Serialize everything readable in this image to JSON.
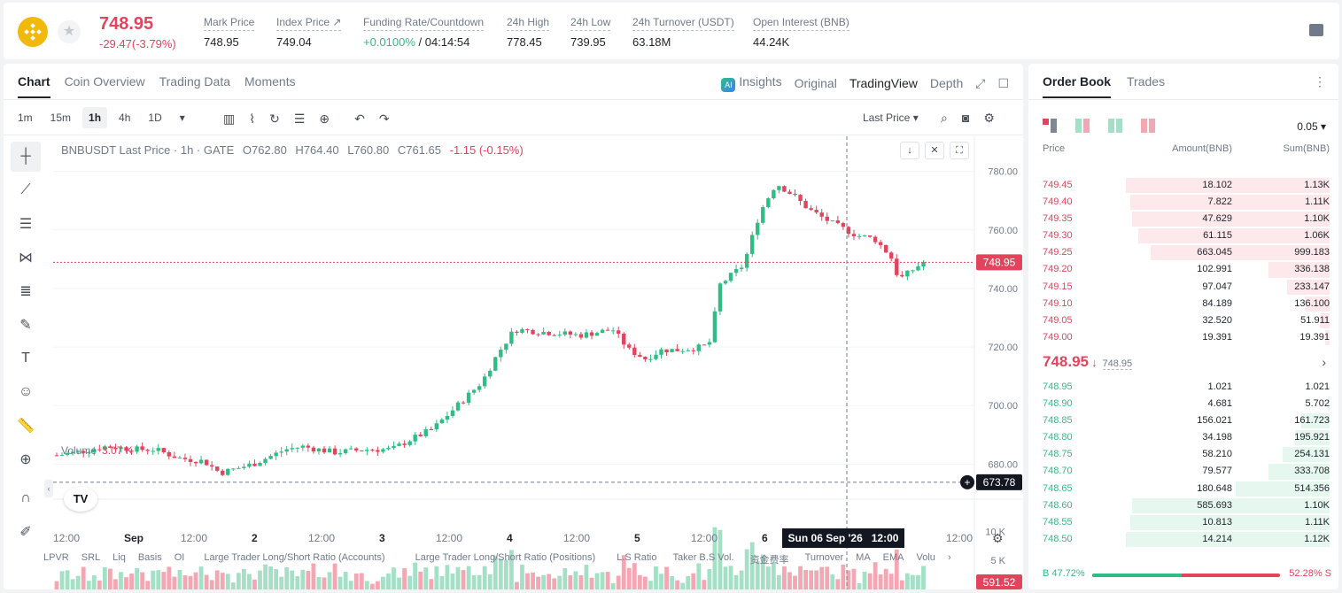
{
  "header": {
    "last_price": "748.95",
    "change": "-29.47(-3.79%)",
    "stats": [
      {
        "label": "Mark Price",
        "value": "748.95"
      },
      {
        "label": "Index Price ↗",
        "value": "749.04"
      },
      {
        "label": "Funding Rate/Countdown",
        "value_green": "+0.0100%",
        "value": " / 04:14:54"
      },
      {
        "label": "24h High",
        "value": "778.45"
      },
      {
        "label": "24h Low",
        "value": "739.95"
      },
      {
        "label": "24h Turnover (USDT)",
        "value": "63.18M"
      },
      {
        "label": "Open Interest (BNB)",
        "value": "44.24K"
      }
    ]
  },
  "chart_tabs": [
    "Chart",
    "Coin Overview",
    "Trading Data",
    "Moments"
  ],
  "view_tabs": {
    "insights": "Insights",
    "original": "Original",
    "tradingview": "TradingView",
    "depth": "Depth"
  },
  "intervals": [
    "1m",
    "15m",
    "1h",
    "4h",
    "1D"
  ],
  "price_type": "Last Price",
  "legend": {
    "symbol": "BNBUSDT Last Price · 1h · GATE",
    "o": "O762.80",
    "h": "H764.40",
    "l": "L760.80",
    "c": "C761.65",
    "chg": "-1.15 (-0.15%)"
  },
  "volume_legend": {
    "label": "Volume",
    "value": "3.07 K"
  },
  "crosshair": {
    "price": "673.78",
    "time": "Sun 06 Sep '26   12:00"
  },
  "indicators": [
    "LPVR",
    "SRL",
    "Liq",
    "Basis",
    "OI",
    "Large Trader Long/Short Ratio (Accounts)",
    "Large Trader Long/Short Ratio (Positions)",
    "L.S Ratio",
    "Taker B.S Vol.",
    "资金费率",
    "Turnover",
    "MA",
    "EMA",
    "Volu"
  ],
  "chart_data": {
    "type": "candlestick",
    "symbol": "BNBUSDT",
    "interval": "1h",
    "y_ticks": [
      780,
      760,
      740,
      720,
      700,
      680
    ],
    "y_tick_labels": [
      "780.00",
      "760.00",
      "740.00",
      "720.00",
      "700.00",
      "680.00"
    ],
    "ylim": [
      668,
      792
    ],
    "x_tick_labels": [
      "12:00",
      "Sep",
      "12:00",
      "2",
      "12:00",
      "3",
      "12:00",
      "4",
      "12:00",
      "5",
      "12:00",
      "6",
      "12:00",
      "7",
      "12:00"
    ],
    "last_price_label": "748.95",
    "last_price": 748.95,
    "volume_ticks": [
      "10 K",
      "5 K"
    ],
    "volume_ylim": [
      0,
      14000
    ],
    "current_volume_label": "591.52",
    "colors": {
      "up": "#2ebd85",
      "down": "#e2445c",
      "up_vol": "#a3e0c6",
      "down_vol": "#f3a7b2"
    }
  },
  "orderbook": {
    "tabs": [
      "Order Book",
      "Trades"
    ],
    "step": "0.05 ▾",
    "headers": {
      "price": "Price",
      "amount": "Amount(BNB)",
      "sum": "Sum(BNB)"
    },
    "asks": [
      {
        "price": "749.45",
        "amount": "18.102",
        "sum": "1.13K",
        "depth": 1.0
      },
      {
        "price": "749.40",
        "amount": "7.822",
        "sum": "1.11K",
        "depth": 0.98
      },
      {
        "price": "749.35",
        "amount": "47.629",
        "sum": "1.10K",
        "depth": 0.97
      },
      {
        "price": "749.30",
        "amount": "61.115",
        "sum": "1.06K",
        "depth": 0.94
      },
      {
        "price": "749.25",
        "amount": "663.045",
        "sum": "999.183",
        "depth": 0.88
      },
      {
        "price": "749.20",
        "amount": "102.991",
        "sum": "336.138",
        "depth": 0.3
      },
      {
        "price": "749.15",
        "amount": "97.047",
        "sum": "233.147",
        "depth": 0.21
      },
      {
        "price": "749.10",
        "amount": "84.189",
        "sum": "136.100",
        "depth": 0.12
      },
      {
        "price": "749.05",
        "amount": "32.520",
        "sum": "51.911",
        "depth": 0.05
      },
      {
        "price": "749.00",
        "amount": "19.391",
        "sum": "19.391",
        "depth": 0.02
      }
    ],
    "mid_price": "748.95",
    "mid_arrow": "🡓",
    "mark_price": "748.95",
    "bids": [
      {
        "price": "748.95",
        "amount": "1.021",
        "sum": "1.021",
        "depth": 0.0
      },
      {
        "price": "748.90",
        "amount": "4.681",
        "sum": "5.702",
        "depth": 0.01
      },
      {
        "price": "748.85",
        "amount": "156.021",
        "sum": "161.723",
        "depth": 0.14
      },
      {
        "price": "748.80",
        "amount": "34.198",
        "sum": "195.921",
        "depth": 0.17
      },
      {
        "price": "748.75",
        "amount": "58.210",
        "sum": "254.131",
        "depth": 0.23
      },
      {
        "price": "748.70",
        "amount": "79.577",
        "sum": "333.708",
        "depth": 0.3
      },
      {
        "price": "748.65",
        "amount": "180.648",
        "sum": "514.356",
        "depth": 0.46
      },
      {
        "price": "748.60",
        "amount": "585.693",
        "sum": "1.10K",
        "depth": 0.97
      },
      {
        "price": "748.55",
        "amount": "10.813",
        "sum": "1.11K",
        "depth": 0.98
      },
      {
        "price": "748.50",
        "amount": "14.214",
        "sum": "1.12K",
        "depth": 1.0
      }
    ],
    "buy_ratio": "B 47.72%",
    "sell_ratio": "52.28% S",
    "buy_fraction": 0.4772
  }
}
